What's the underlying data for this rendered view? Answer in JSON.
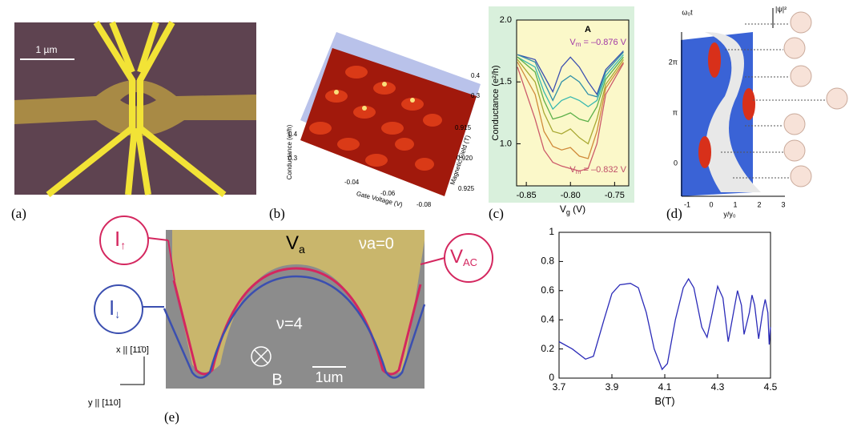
{
  "panels": {
    "a": {
      "label": "(a)",
      "scale": "1 µm"
    },
    "b": {
      "label": "(b)",
      "ylabel": "Conductance (e²/h)",
      "xlabel": "Gate Voltage (V)",
      "zlabel": "Magnetic Field (T)",
      "xticks": [
        "-0.04",
        "-0.06",
        "-0.08"
      ],
      "zticks": [
        "0.915",
        "0.920",
        "0.925"
      ],
      "yticks": [
        "0.3",
        "0.4"
      ],
      "rticks": [
        "0.4",
        "0.3"
      ]
    },
    "c": {
      "label": "(c)"
    },
    "d": {
      "label": "(d)",
      "ylabel": "ω₀t",
      "zlabel": "|ψ|²",
      "yticks": [
        "2π",
        "π",
        "0"
      ],
      "xticks": [
        "-1",
        "0",
        "1",
        "2",
        "3"
      ],
      "xlabel": "y/y₀"
    },
    "e": {
      "label": "(e)",
      "va": "V",
      "va_sub": "a",
      "nua": "νa=0",
      "nu": "ν=4",
      "b": "B",
      "scale": "1um",
      "iup": "I",
      "iup_sub": "↑",
      "idown": "I",
      "idown_sub": "↓",
      "vac": "V",
      "vac_sub": "AC",
      "xdir": "x || [11̄0]",
      "ydir": "y || [110]"
    }
  },
  "chart_data": [
    {
      "type": "line",
      "title": "A",
      "ylabel": "Conductance (e²/h)",
      "xlabel": "V",
      "xlabel_sub": "g",
      "xlabel_unit": " (V)",
      "annotations": [
        {
          "text": "V",
          "sub": "m",
          "rest": " = –0.876 V",
          "color": "#a23aa6"
        },
        {
          "text": "V",
          "sub": "m",
          "rest": " = –0.832 V",
          "color": "#c0506a"
        }
      ],
      "x": [
        -0.86,
        -0.84,
        -0.83,
        -0.82,
        -0.81,
        -0.8,
        -0.79,
        -0.78,
        -0.77,
        -0.76,
        -0.74
      ],
      "xlim": [
        -0.861,
        -0.734
      ],
      "xticks": [
        -0.85,
        {
          "value": -0.8,
          "label": "-0.80"
        },
        -0.75
      ],
      "ylim": [
        0.66,
        2.0
      ],
      "yticks": [
        {
          "value": 1.0,
          "label": "1.0"
        },
        1.5,
        {
          "value": 2.0,
          "label": "2.0"
        }
      ],
      "background": "#fbf8c9",
      "series": [
        {
          "color": "#3b4fb0",
          "values": [
            1.72,
            1.68,
            1.55,
            1.42,
            1.62,
            1.7,
            1.62,
            1.5,
            1.4,
            1.6,
            1.75
          ]
        },
        {
          "color": "#2f8fa8",
          "values": [
            1.72,
            1.66,
            1.5,
            1.35,
            1.5,
            1.55,
            1.5,
            1.4,
            1.38,
            1.58,
            1.74
          ]
        },
        {
          "color": "#38b8b0",
          "values": [
            1.7,
            1.62,
            1.42,
            1.28,
            1.35,
            1.38,
            1.35,
            1.3,
            1.35,
            1.55,
            1.72
          ]
        },
        {
          "color": "#5cb04a",
          "values": [
            1.7,
            1.58,
            1.35,
            1.2,
            1.22,
            1.25,
            1.2,
            1.18,
            1.3,
            1.52,
            1.7
          ]
        },
        {
          "color": "#a8a832",
          "values": [
            1.68,
            1.5,
            1.25,
            1.1,
            1.08,
            1.12,
            1.05,
            1.0,
            1.2,
            1.48,
            1.68
          ]
        },
        {
          "color": "#d08a3a",
          "values": [
            1.66,
            1.4,
            1.1,
            0.98,
            0.95,
            0.97,
            0.9,
            0.88,
            1.1,
            1.45,
            1.66
          ]
        },
        {
          "color": "#cc5a6a",
          "values": [
            1.62,
            1.2,
            0.95,
            0.85,
            0.82,
            0.8,
            0.78,
            0.8,
            1.0,
            1.4,
            1.65
          ]
        }
      ]
    },
    {
      "type": "line",
      "xlabel": "B(T)",
      "x": [
        3.7,
        3.75,
        3.8,
        3.83,
        3.87,
        3.9,
        3.93,
        3.97,
        4.0,
        4.03,
        4.06,
        4.09,
        4.11,
        4.14,
        4.17,
        4.19,
        4.21,
        4.24,
        4.26,
        4.28,
        4.3,
        4.32,
        4.34,
        4.36,
        4.375,
        4.39,
        4.4,
        4.42,
        4.43,
        4.44,
        4.455,
        4.47,
        4.48,
        4.49,
        4.495,
        4.5
      ],
      "xlim": [
        3.7,
        4.5
      ],
      "xticks": [
        3.7,
        3.9,
        4.1,
        4.3,
        4.5
      ],
      "ylim": [
        0,
        1
      ],
      "yticks": [
        0,
        0.2,
        0.4,
        0.6,
        0.8,
        1
      ],
      "background": "#ffffff",
      "series": [
        {
          "color": "#2b2bb8",
          "values": [
            0.25,
            0.2,
            0.13,
            0.15,
            0.4,
            0.58,
            0.64,
            0.65,
            0.62,
            0.45,
            0.2,
            0.06,
            0.1,
            0.4,
            0.62,
            0.68,
            0.62,
            0.35,
            0.28,
            0.45,
            0.63,
            0.55,
            0.25,
            0.45,
            0.6,
            0.5,
            0.3,
            0.45,
            0.57,
            0.5,
            0.27,
            0.45,
            0.54,
            0.45,
            0.23,
            0.35
          ]
        }
      ]
    }
  ]
}
